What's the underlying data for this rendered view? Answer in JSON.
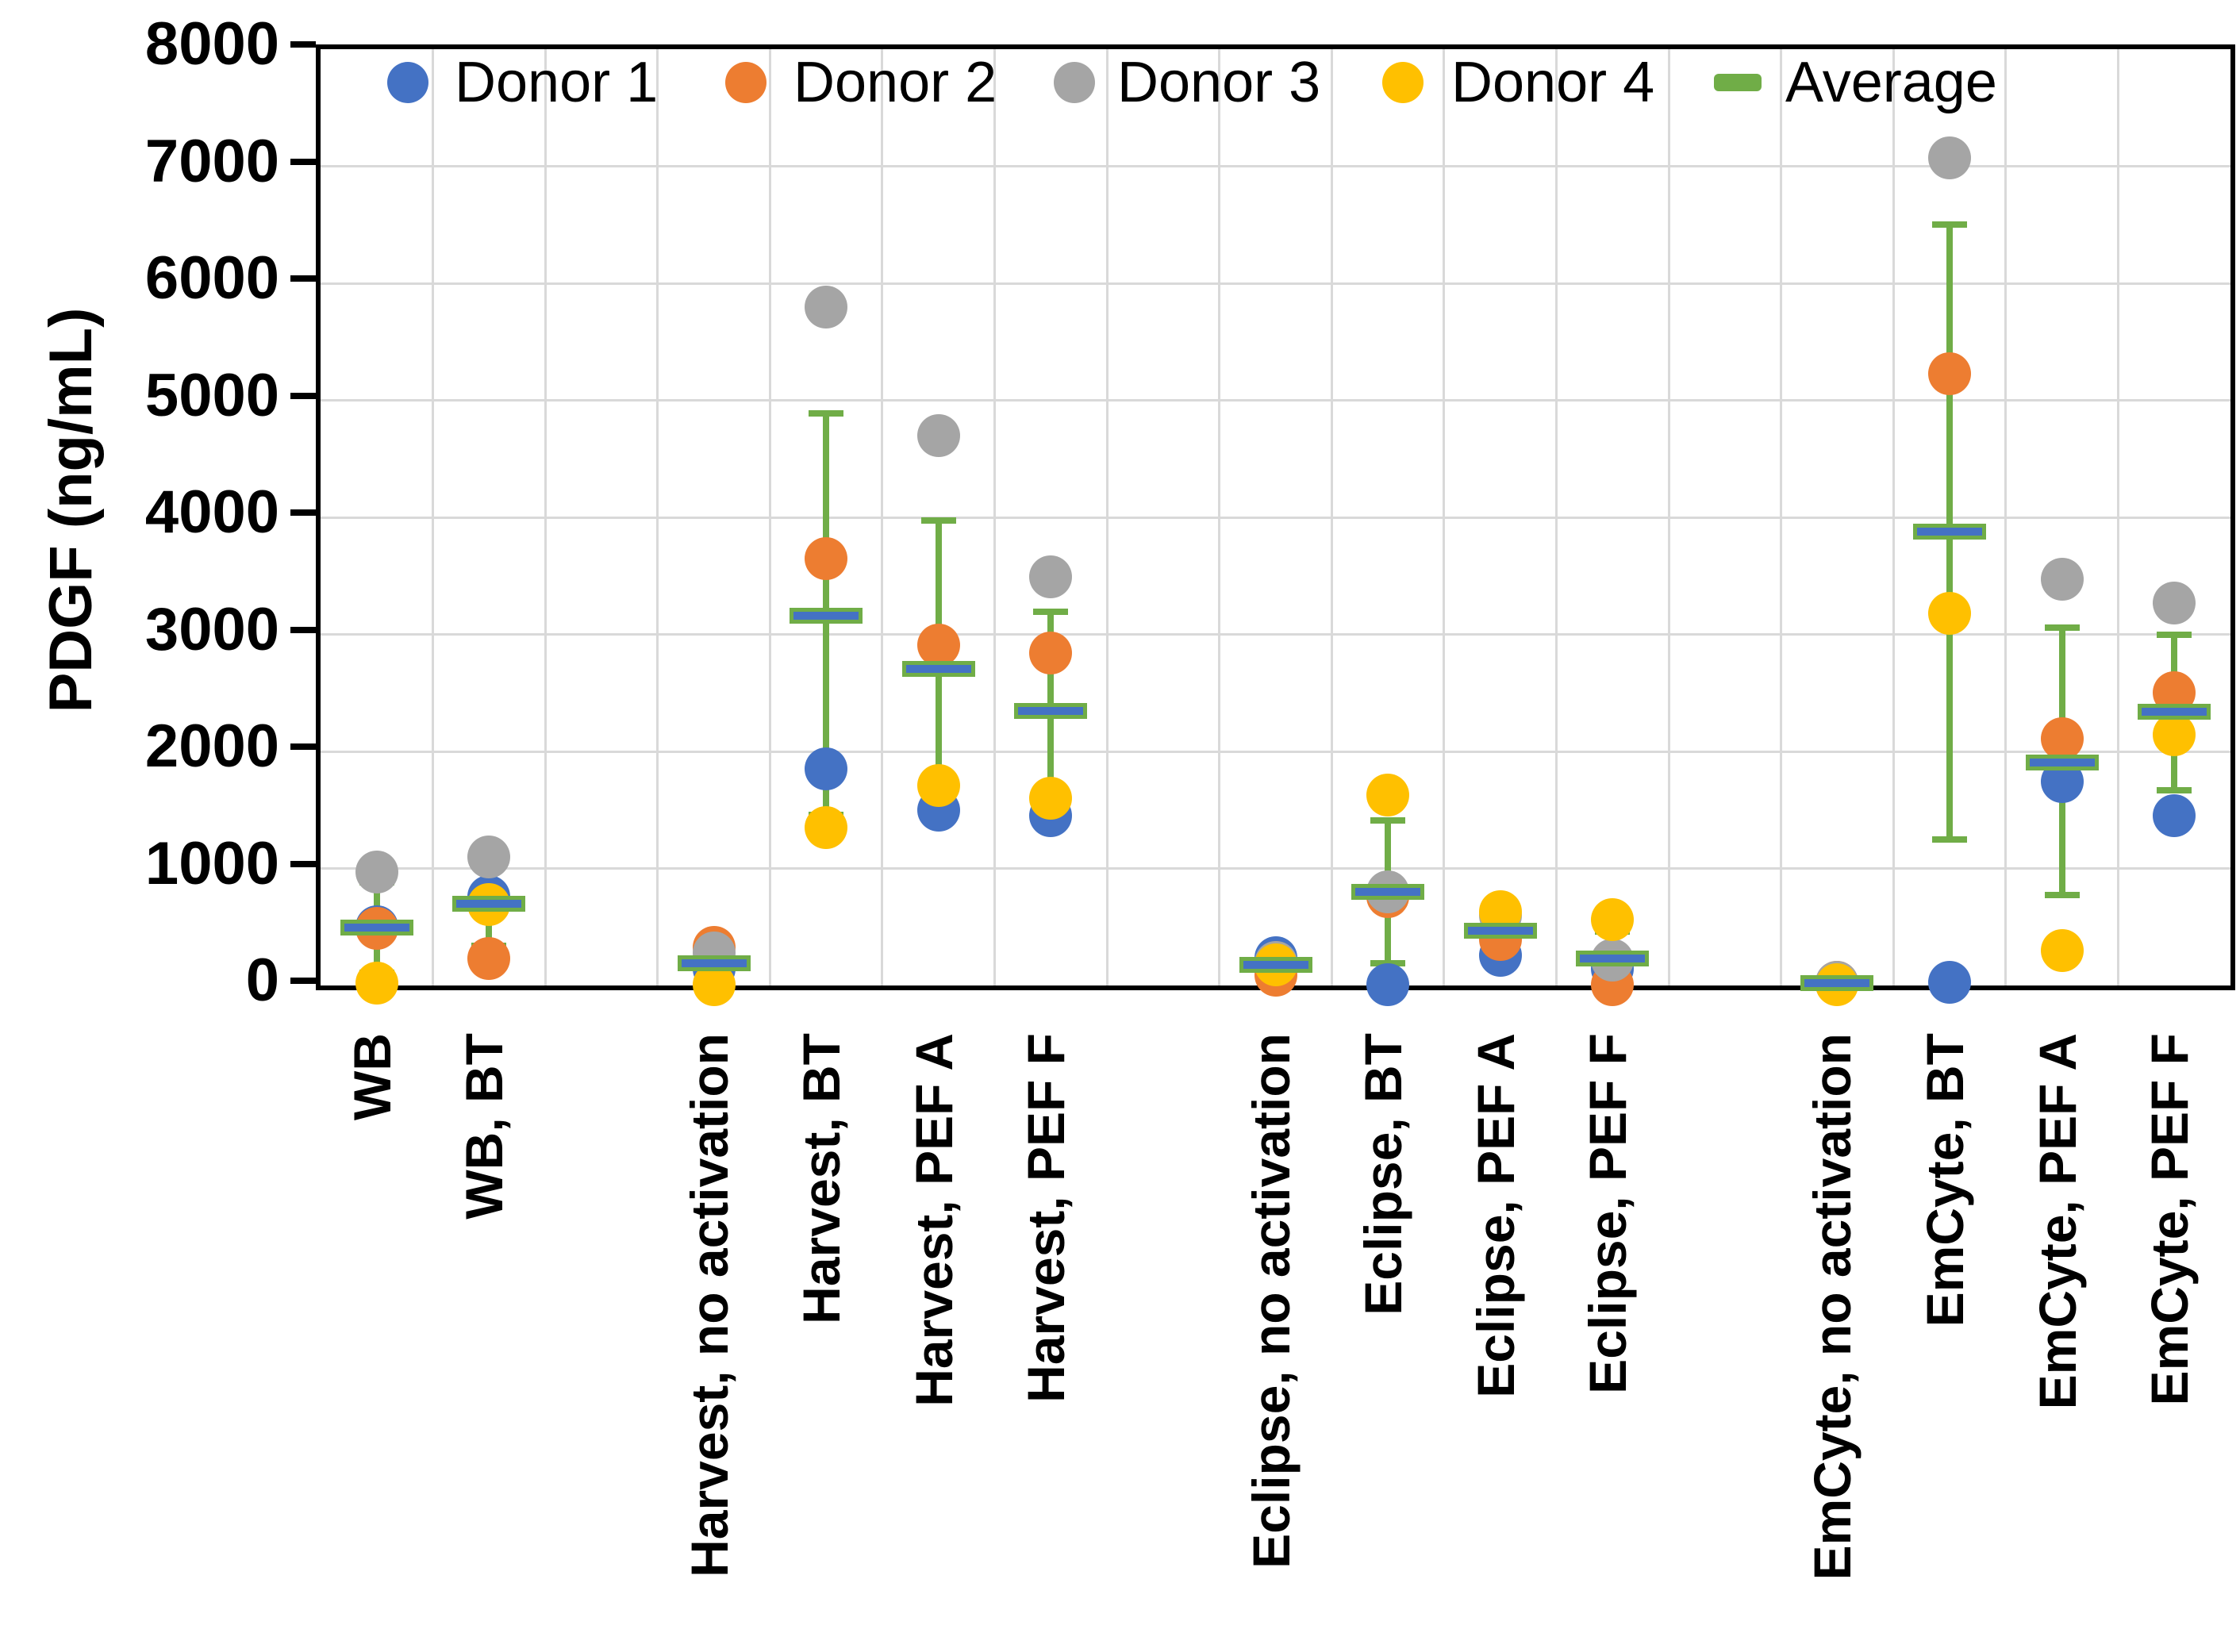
{
  "y_axis": {
    "title": "PDGF (ng/mL)",
    "ticks": [
      "0",
      "1000",
      "2000",
      "3000",
      "4000",
      "5000",
      "6000",
      "7000",
      "8000"
    ],
    "min": 0,
    "max": 8000
  },
  "legend": [
    {
      "label": "Donor 1",
      "color": "#4472C4",
      "marker": "circle"
    },
    {
      "label": "Donor 2",
      "color": "#ED7D31",
      "marker": "circle"
    },
    {
      "label": "Donor 3",
      "color": "#A5A5A5",
      "marker": "circle"
    },
    {
      "label": "Donor 4",
      "color": "#FFC000",
      "marker": "circle"
    },
    {
      "label": "Average",
      "color": "#70AD47",
      "marker": "dash"
    }
  ],
  "colors": {
    "donor1": "#4472C4",
    "donor2": "#ED7D31",
    "donor3": "#A5A5A5",
    "donor4": "#FFC000",
    "average_green": "#70AD47",
    "average_inner_blue": "#4472C4",
    "gridline": "#D9D9D9",
    "axis": "#000000"
  },
  "chart_data": {
    "type": "scatter",
    "title": "",
    "xlabel": "",
    "ylabel": "PDGF (ng/mL)",
    "ylim": [
      0,
      8000
    ],
    "grid": true,
    "legend_position": "top",
    "categories": [
      "WB",
      "WB, BT",
      "Harvest, no activation",
      "Harvest, BT",
      "Harvest, PEF A",
      "Harvest, PEF F",
      "Eclipse, no activation",
      "Eclipse, BT",
      "Eclipse, PEF A",
      "Eclipse, PEF F",
      "EmCyte, no activation",
      "EmCyte, BT",
      "EmCyte, PEF A",
      "EmCyte, PEF F"
    ],
    "slots": [
      0,
      1,
      3,
      4,
      5,
      6,
      8,
      9,
      10,
      11,
      13,
      14,
      15,
      16
    ],
    "total_slots": 17,
    "series": [
      {
        "name": "Donor 1",
        "color": "#4472C4",
        "values": [
          500,
          760,
          145,
          1850,
          1500,
          1450,
          240,
          10,
          260,
          140,
          20,
          30,
          1740,
          1450
        ]
      },
      {
        "name": "Donor 2",
        "color": "#ED7D31",
        "values": [
          490,
          230,
          325,
          3650,
          2910,
          2840,
          90,
          760,
          390,
          5,
          25,
          5230,
          2110,
          2500
        ]
      },
      {
        "name": "Donor 3",
        "color": "#A5A5A5",
        "values": [
          970,
          1100,
          280,
          5800,
          4700,
          3490,
          200,
          800,
          600,
          215,
          30,
          7070,
          3470,
          3270
        ]
      },
      {
        "name": "Donor 4",
        "color": "#FFC000",
        "values": [
          20,
          690,
          10,
          1350,
          1710,
          1600,
          175,
          1630,
          630,
          560,
          8,
          3180,
          300,
          2140
        ]
      }
    ],
    "average": {
      "name": "Average",
      "color": "#70AD47",
      "values": [
        495,
        695,
        190,
        3160,
        2705,
        2345,
        176,
        800,
        470,
        230,
        21,
        3878,
        1905,
        2340
      ]
    },
    "error_bars": {
      "low": [
        107,
        337,
        48,
        1460,
        1440,
        1500,
        113,
        190,
        295,
        0,
        5,
        1250,
        770,
        1670
      ],
      "high": [
        883,
        1053,
        332,
        4890,
        3970,
        3190,
        239,
        1410,
        645,
        460,
        38,
        6500,
        3060,
        3000
      ]
    }
  }
}
